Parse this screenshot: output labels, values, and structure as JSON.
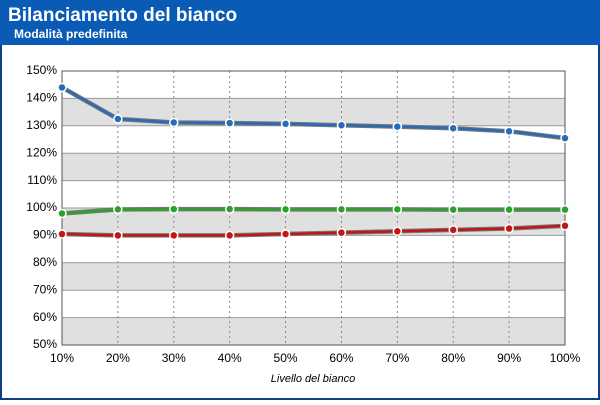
{
  "chart_data": {
    "type": "line",
    "title": "Bilanciamento del bianco",
    "subtitle": "Modalità predefinita",
    "x_label": "Livello del bianco",
    "categories": [
      "10%",
      "20%",
      "30%",
      "40%",
      "50%",
      "60%",
      "70%",
      "80%",
      "90%",
      "100%"
    ],
    "series": [
      {
        "color": "#2a6bb5",
        "values": [
          144,
          132.5,
          131.2,
          131,
          130.7,
          130.2,
          129.7,
          129.1,
          128,
          125.5
        ]
      },
      {
        "color": "#2ea02e",
        "values": [
          98,
          99.5,
          99.6,
          99.6,
          99.5,
          99.5,
          99.5,
          99.4,
          99.4,
          99.4
        ]
      },
      {
        "color": "#c01818",
        "values": [
          90.5,
          90,
          90,
          90,
          90.5,
          91,
          91.5,
          92,
          92.5,
          93.5
        ]
      }
    ],
    "ylim": [
      50,
      150
    ],
    "yticks": [
      {
        "value": 50,
        "label": "50%"
      },
      {
        "value": 60,
        "label": "60%"
      },
      {
        "value": 70,
        "label": "70%"
      },
      {
        "value": 80,
        "label": "80%"
      },
      {
        "value": 90,
        "label": "90%"
      },
      {
        "value": 100,
        "label": "100%"
      },
      {
        "value": 110,
        "label": "110%"
      },
      {
        "value": 120,
        "label": "120%"
      },
      {
        "value": 130,
        "label": "130%"
      },
      {
        "value": 140,
        "label": "140%"
      },
      {
        "value": 150,
        "label": "150%"
      }
    ],
    "grid": true
  }
}
